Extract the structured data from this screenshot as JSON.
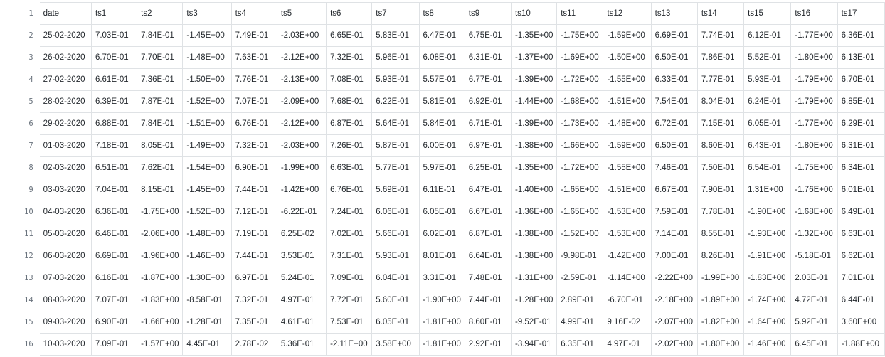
{
  "table": {
    "headers": [
      "date",
      "ts1",
      "ts2",
      "ts3",
      "ts4",
      "ts5",
      "ts6",
      "ts7",
      "ts8",
      "ts9",
      "ts10",
      "ts11",
      "ts12",
      "ts13",
      "ts14",
      "ts15",
      "ts16",
      "ts17"
    ],
    "line_numbers": [
      "1",
      "2",
      "3",
      "4",
      "5",
      "6",
      "7",
      "8",
      "9",
      "10",
      "11",
      "12",
      "13",
      "14",
      "15",
      "16"
    ],
    "rows": [
      [
        "25-02-2020",
        "7.03E-01",
        "7.84E-01",
        "-1.45E+00",
        "7.49E-01",
        "-2.03E+00",
        "6.65E-01",
        "5.83E-01",
        "6.47E-01",
        "6.75E-01",
        "-1.35E+00",
        "-1.75E+00",
        "-1.59E+00",
        "6.69E-01",
        "7.74E-01",
        "6.12E-01",
        "-1.77E+00",
        "6.36E-01"
      ],
      [
        "26-02-2020",
        "6.70E-01",
        "7.70E-01",
        "-1.48E+00",
        "7.63E-01",
        "-2.12E+00",
        "7.32E-01",
        "5.96E-01",
        "6.08E-01",
        "6.31E-01",
        "-1.37E+00",
        "-1.69E+00",
        "-1.50E+00",
        "6.50E-01",
        "7.86E-01",
        "5.52E-01",
        "-1.80E+00",
        "6.13E-01"
      ],
      [
        "27-02-2020",
        "6.61E-01",
        "7.36E-01",
        "-1.50E+00",
        "7.76E-01",
        "-2.13E+00",
        "7.08E-01",
        "5.93E-01",
        "5.57E-01",
        "6.77E-01",
        "-1.39E+00",
        "-1.72E+00",
        "-1.55E+00",
        "6.33E-01",
        "7.77E-01",
        "5.93E-01",
        "-1.79E+00",
        "6.70E-01"
      ],
      [
        "28-02-2020",
        "6.39E-01",
        "7.87E-01",
        "-1.52E+00",
        "7.07E-01",
        "-2.09E+00",
        "7.68E-01",
        "6.22E-01",
        "5.81E-01",
        "6.92E-01",
        "-1.44E+00",
        "-1.68E+00",
        "-1.51E+00",
        "7.54E-01",
        "8.04E-01",
        "6.24E-01",
        "-1.79E+00",
        "6.85E-01"
      ],
      [
        "29-02-2020",
        "6.88E-01",
        "7.84E-01",
        "-1.51E+00",
        "6.76E-01",
        "-2.12E+00",
        "6.87E-01",
        "5.64E-01",
        "5.84E-01",
        "6.71E-01",
        "-1.39E+00",
        "-1.73E+00",
        "-1.48E+00",
        "6.72E-01",
        "7.15E-01",
        "6.05E-01",
        "-1.77E+00",
        "6.29E-01"
      ],
      [
        "01-03-2020",
        "7.18E-01",
        "8.05E-01",
        "-1.49E+00",
        "7.32E-01",
        "-2.03E+00",
        "7.26E-01",
        "5.87E-01",
        "6.00E-01",
        "6.97E-01",
        "-1.38E+00",
        "-1.66E+00",
        "-1.59E+00",
        "6.50E-01",
        "8.60E-01",
        "6.43E-01",
        "-1.80E+00",
        "6.31E-01"
      ],
      [
        "02-03-2020",
        "6.51E-01",
        "7.62E-01",
        "-1.54E+00",
        "6.90E-01",
        "-1.99E+00",
        "6.63E-01",
        "5.77E-01",
        "5.97E-01",
        "6.25E-01",
        "-1.35E+00",
        "-1.72E+00",
        "-1.55E+00",
        "7.46E-01",
        "7.50E-01",
        "6.54E-01",
        "-1.75E+00",
        "6.34E-01"
      ],
      [
        "03-03-2020",
        "7.04E-01",
        "8.15E-01",
        "-1.45E+00",
        "7.44E-01",
        "-1.42E+00",
        "6.76E-01",
        "5.69E-01",
        "6.11E-01",
        "6.47E-01",
        "-1.40E+00",
        "-1.65E+00",
        "-1.51E+00",
        "6.67E-01",
        "7.90E-01",
        "1.31E+00",
        "-1.76E+00",
        "6.01E-01"
      ],
      [
        "04-03-2020",
        "6.36E-01",
        "-1.75E+00",
        "-1.52E+00",
        "7.12E-01",
        "-6.22E-01",
        "7.24E-01",
        "6.06E-01",
        "6.05E-01",
        "6.67E-01",
        "-1.36E+00",
        "-1.65E+00",
        "-1.53E+00",
        "7.59E-01",
        "7.78E-01",
        "-1.90E+00",
        "-1.68E+00",
        "6.49E-01"
      ],
      [
        "05-03-2020",
        "6.46E-01",
        "-2.06E+00",
        "-1.48E+00",
        "7.19E-01",
        "6.25E-02",
        "7.02E-01",
        "5.66E-01",
        "6.02E-01",
        "6.87E-01",
        "-1.38E+00",
        "-1.52E+00",
        "-1.53E+00",
        "7.14E-01",
        "8.55E-01",
        "-1.93E+00",
        "-1.32E+00",
        "6.63E-01"
      ],
      [
        "06-03-2020",
        "6.69E-01",
        "-1.96E+00",
        "-1.46E+00",
        "7.44E-01",
        "3.53E-01",
        "7.31E-01",
        "5.93E-01",
        "8.01E-01",
        "6.64E-01",
        "-1.38E+00",
        "-9.98E-01",
        "-1.42E+00",
        "7.00E-01",
        "8.26E-01",
        "-1.91E+00",
        "-5.18E-01",
        "6.62E-01"
      ],
      [
        "07-03-2020",
        "6.16E-01",
        "-1.87E+00",
        "-1.30E+00",
        "6.97E-01",
        "5.24E-01",
        "7.09E-01",
        "6.04E-01",
        "3.31E-01",
        "7.48E-01",
        "-1.31E+00",
        "-2.59E-01",
        "-1.14E+00",
        "-2.22E+00",
        "-1.99E+00",
        "-1.83E+00",
        "2.03E-01",
        "7.01E-01"
      ],
      [
        "08-03-2020",
        "7.07E-01",
        "-1.83E+00",
        "-8.58E-01",
        "7.32E-01",
        "4.97E-01",
        "7.72E-01",
        "5.60E-01",
        "-1.90E+00",
        "7.44E-01",
        "-1.28E+00",
        "2.89E-01",
        "-6.70E-01",
        "-2.18E+00",
        "-1.89E+00",
        "-1.74E+00",
        "4.72E-01",
        "6.44E-01"
      ],
      [
        "09-03-2020",
        "6.90E-01",
        "-1.66E+00",
        "-1.28E-01",
        "7.35E-01",
        "4.61E-01",
        "7.53E-01",
        "6.05E-01",
        "-1.81E+00",
        "8.60E-01",
        "-9.52E-01",
        "4.99E-01",
        "9.16E-02",
        "-2.07E+00",
        "-1.82E+00",
        "-1.64E+00",
        "5.92E-01",
        "3.60E+00"
      ],
      [
        "10-03-2020",
        "7.09E-01",
        "-1.57E+00",
        "4.45E-01",
        "2.78E-02",
        "5.36E-01",
        "-2.11E+00",
        "3.58E+00",
        "-1.81E+00",
        "2.92E-01",
        "-3.94E-01",
        "6.35E-01",
        "4.97E-01",
        "-2.02E+00",
        "-1.80E+00",
        "-1.46E+00",
        "6.45E-01",
        "-1.88E+00"
      ]
    ]
  }
}
